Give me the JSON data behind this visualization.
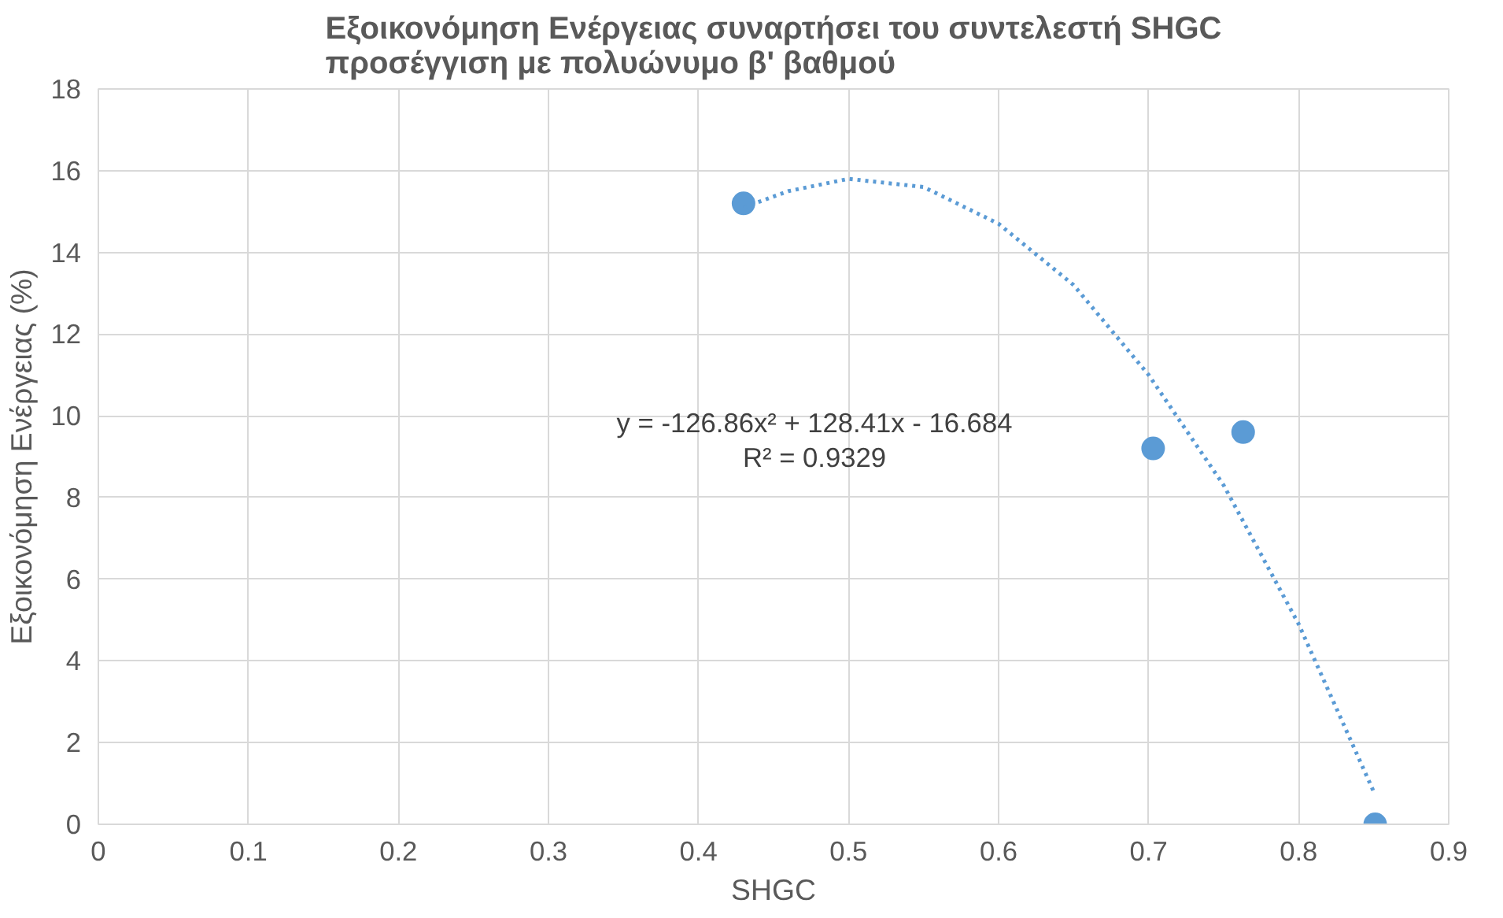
{
  "chart_data": {
    "type": "scatter",
    "title": "Εξοικονόμηση Ενέργειας συναρτήσει του συντελεστή SHGC\nπροσέγγιση με πολυώνυμο β' βαθμού",
    "xlabel": "SHGC",
    "ylabel": "Εξοικονόμηση Ενέργειας (%)",
    "series": [
      {
        "color": "#5b9bd5",
        "x": [
          0.43,
          0.703,
          0.763,
          0.851
        ],
        "values": [
          15.2,
          9.2,
          9.6,
          0.0
        ]
      },
      {
        "type": "line",
        "color": "#5b9bd5",
        "line_style": "dotted",
        "marker": "none",
        "x": [
          0.43,
          0.46,
          0.5,
          0.55,
          0.6,
          0.65,
          0.7,
          0.75,
          0.8,
          0.85
        ],
        "values": [
          15.1,
          15.5,
          15.8,
          15.6,
          14.7,
          13.2,
          11.0,
          8.3,
          4.9,
          0.8
        ]
      }
    ],
    "marker": "circle",
    "xlim": [
      0,
      0.9
    ],
    "ylim": [
      0,
      18
    ],
    "xticks": [
      0,
      0.1,
      0.2,
      0.3,
      0.4,
      0.5,
      0.6,
      0.7,
      0.8,
      0.9
    ],
    "yticks": [
      0,
      2,
      4,
      6,
      8,
      10,
      12,
      14,
      16,
      18
    ],
    "grid": true,
    "annotations": [
      "y = -126.86x² + 128.41x - 16.684",
      "R² = 0.9329"
    ]
  }
}
